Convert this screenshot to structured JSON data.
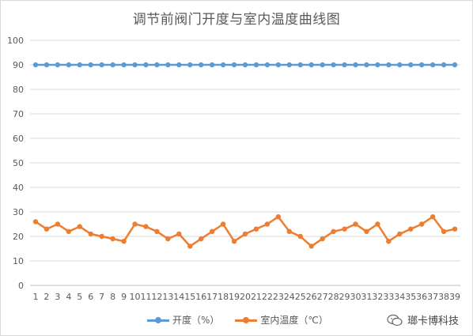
{
  "title": "调节前阀门开度与室内温度曲线图",
  "watermark": "瑯卡博科技",
  "chart_data": {
    "type": "line",
    "title": "调节前阀门开度与室内温度曲线图",
    "xlabel": "",
    "ylabel": "",
    "ylim": [
      0,
      100
    ],
    "yticks": [
      0,
      10,
      20,
      30,
      40,
      50,
      60,
      70,
      80,
      90,
      100
    ],
    "grid": true,
    "legend_position": "bottom",
    "x": [
      1,
      2,
      3,
      4,
      5,
      6,
      7,
      8,
      9,
      10,
      11,
      12,
      13,
      14,
      15,
      16,
      17,
      18,
      19,
      20,
      21,
      22,
      23,
      24,
      25,
      26,
      27,
      28,
      29,
      30,
      31,
      32,
      33,
      34,
      35,
      36,
      37,
      38,
      39
    ],
    "series": [
      {
        "name": "开度（%）",
        "color": "#5b9bd5",
        "values": [
          90,
          90,
          90,
          90,
          90,
          90,
          90,
          90,
          90,
          90,
          90,
          90,
          90,
          90,
          90,
          90,
          90,
          90,
          90,
          90,
          90,
          90,
          90,
          90,
          90,
          90,
          90,
          90,
          90,
          90,
          90,
          90,
          90,
          90,
          90,
          90,
          90,
          90,
          90
        ]
      },
      {
        "name": "室内温度（℃）",
        "color": "#ed7d31",
        "values": [
          26,
          23,
          25,
          22,
          24,
          21,
          20,
          19,
          18,
          25,
          24,
          22,
          19,
          21,
          16,
          19,
          22,
          25,
          18,
          21,
          23,
          25,
          28,
          22,
          20,
          16,
          19,
          22,
          23,
          25,
          22,
          25,
          18,
          21,
          23,
          25,
          28,
          22,
          23
        ]
      }
    ]
  }
}
